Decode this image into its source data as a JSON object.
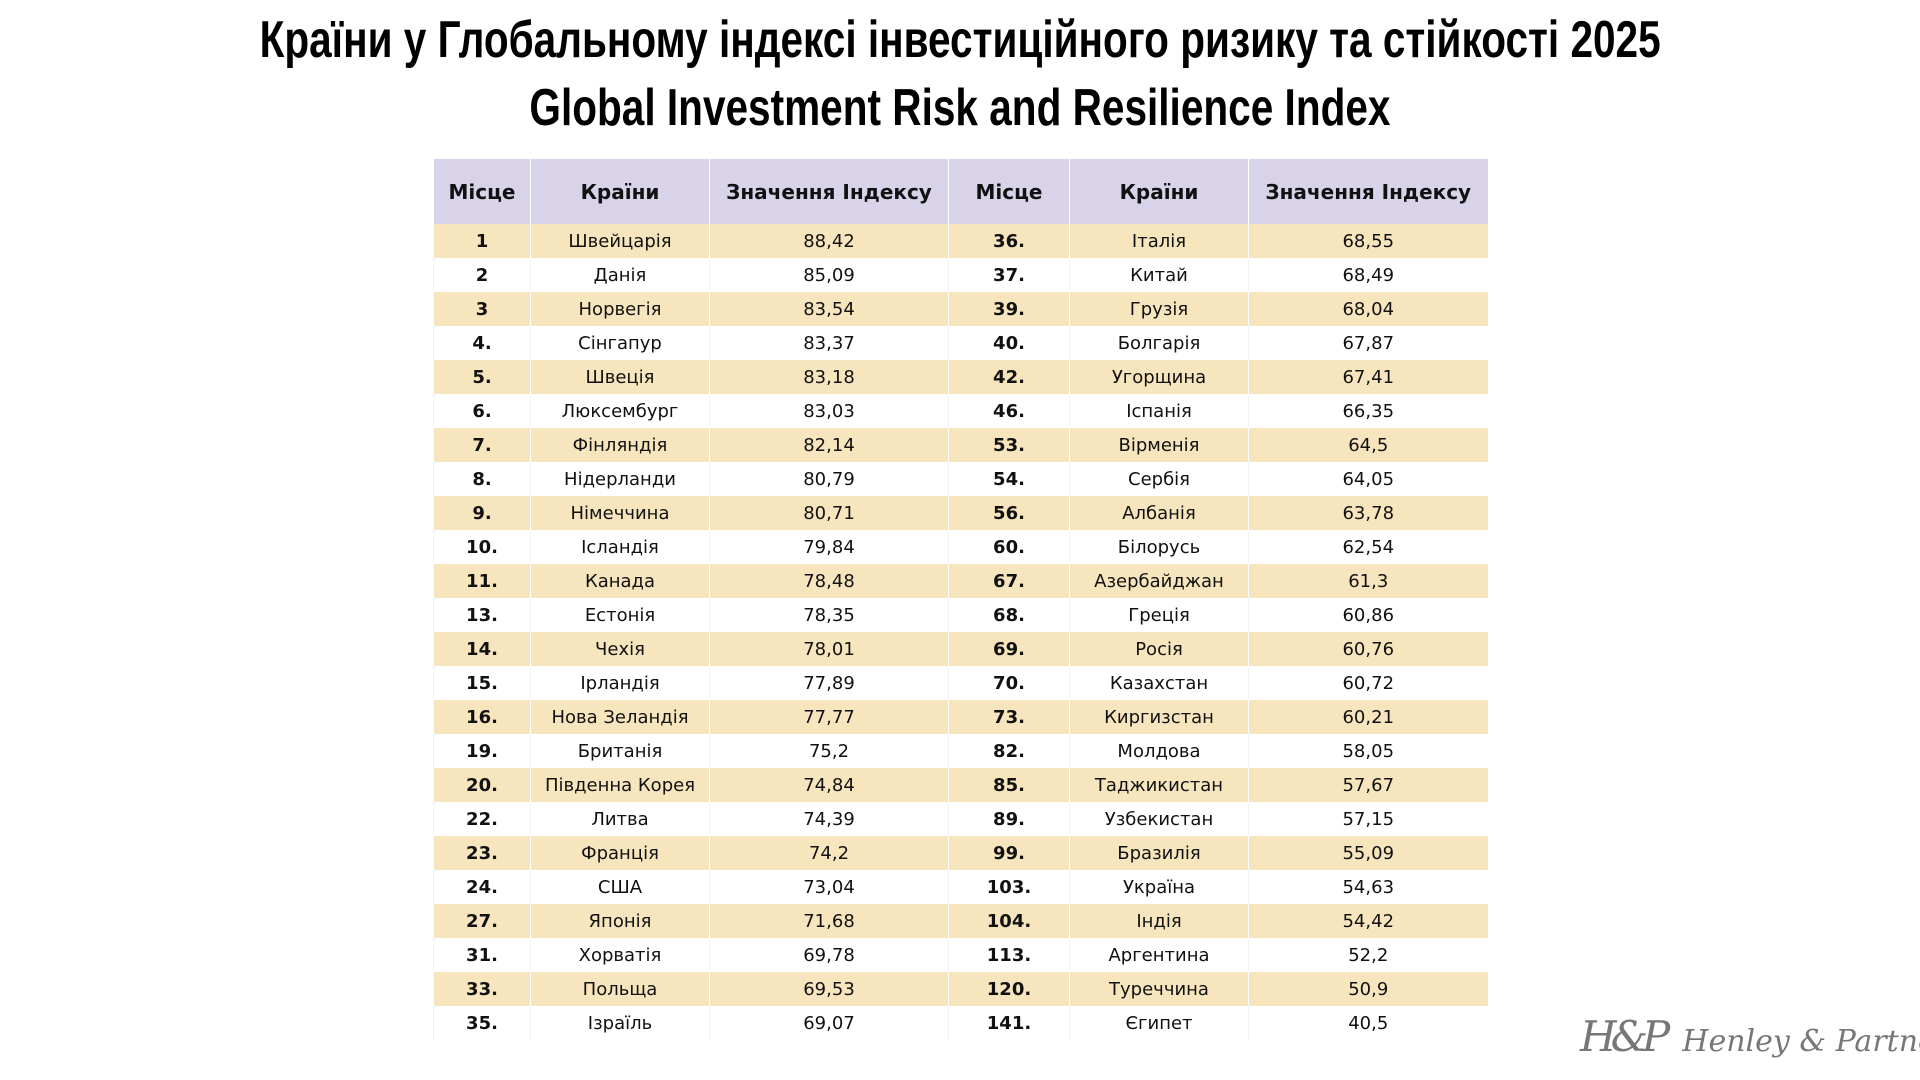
{
  "title_uk": "Країни у Глобальному індексі інвестиційного ризику та стійкості 2025",
  "title_en": "Global Investment Risk and Resilience Index",
  "headers": [
    "Місце",
    "Країни",
    "Значення Індексу",
    "Місце",
    "Країни",
    "Значення Індексу"
  ],
  "colors": {
    "header_bg": "#d9d3ea",
    "odd_row_bg": "#f7e6bd",
    "even_row_bg": "#ffffff"
  },
  "rows": [
    [
      "1",
      "Швейцарія",
      "88,42",
      "36.",
      "Італія",
      "68,55"
    ],
    [
      "2",
      "Данія",
      "85,09",
      "37.",
      "Китай",
      "68,49"
    ],
    [
      "3",
      "Норвегія",
      "83,54",
      "39.",
      "Грузія",
      "68,04"
    ],
    [
      "4.",
      "Сінгапур",
      "83,37",
      "40.",
      "Болгарія",
      "67,87"
    ],
    [
      "5.",
      "Швеція",
      "83,18",
      "42.",
      "Угорщина",
      "67,41"
    ],
    [
      "6.",
      "Люксембург",
      "83,03",
      "46.",
      "Іспанія",
      "66,35"
    ],
    [
      "7.",
      "Фінляндія",
      "82,14",
      "53.",
      "Вірменія",
      "64,5"
    ],
    [
      "8.",
      "Нідерланди",
      "80,79",
      "54.",
      "Сербія",
      "64,05"
    ],
    [
      "9.",
      "Німеччина",
      "80,71",
      "56.",
      "Албанія",
      "63,78"
    ],
    [
      "10.",
      "Ісландія",
      "79,84",
      "60.",
      "Білорусь",
      "62,54"
    ],
    [
      "11.",
      "Канада",
      "78,48",
      "67.",
      "Азербайджан",
      "61,3"
    ],
    [
      "13.",
      "Естонія",
      "78,35",
      "68.",
      "Греція",
      "60,86"
    ],
    [
      "14.",
      "Чехія",
      "78,01",
      "69.",
      "Росія",
      "60,76"
    ],
    [
      "15.",
      "Ірландія",
      "77,89",
      "70.",
      "Казахстан",
      "60,72"
    ],
    [
      "16.",
      "Нова Зеландія",
      "77,77",
      "73.",
      "Киргизстан",
      "60,21"
    ],
    [
      "19.",
      "Британія",
      "75,2",
      "82.",
      "Молдова",
      "58,05"
    ],
    [
      "20.",
      "Південна Корея",
      "74,84",
      "85.",
      "Таджикистан",
      "57,67"
    ],
    [
      "22.",
      "Литва",
      "74,39",
      "89.",
      "Узбекистан",
      "57,15"
    ],
    [
      "23.",
      "Франція",
      "74,2",
      "99.",
      "Бразилія",
      "55,09"
    ],
    [
      "24.",
      "США",
      "73,04",
      "103.",
      "Україна",
      "54,63"
    ],
    [
      "27.",
      "Японія",
      "71,68",
      "104.",
      "Індія",
      "54,42"
    ],
    [
      "31.",
      "Хорватія",
      "69,78",
      "113.",
      "Аргентина",
      "52,2"
    ],
    [
      "33.",
      "Польща",
      "69,53",
      "120.",
      "Туреччина",
      "50,9"
    ],
    [
      "35.",
      "Ізраїль",
      "69,07",
      "141.",
      "Єгипет",
      "40,5"
    ]
  ],
  "logo": {
    "monogram": "H&P",
    "name": "Henley & Partners"
  }
}
